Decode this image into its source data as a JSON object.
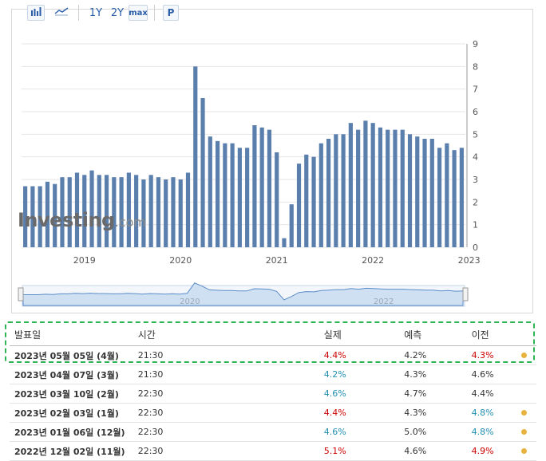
{
  "toolbar": {
    "icons": [
      "bar-chart-icon",
      "line-chart-icon"
    ],
    "range_1y": "1Y",
    "range_2y": "2Y",
    "range_max": "max",
    "p_button": "P"
  },
  "logo": {
    "word": "Investing",
    "domain": ".com"
  },
  "colors": {
    "bar": "#5b7fad",
    "grid": "#e6e6e6",
    "actual_down": "#1f8fb0",
    "actual_up": "#cc0000",
    "dot": "#e8b33d",
    "highlight": "#2eb455"
  },
  "chart_data": {
    "type": "bar",
    "ylim": [
      0,
      9
    ],
    "yticks": [
      "0",
      "1",
      "2",
      "3",
      "4",
      "5",
      "6",
      "7",
      "8",
      "9"
    ],
    "xticks": [
      {
        "label": "2019",
        "index": 8
      },
      {
        "label": "2020",
        "index": 21
      },
      {
        "label": "2021",
        "index": 34
      },
      {
        "label": "2022",
        "index": 47
      },
      {
        "label": "2023",
        "index": 60
      }
    ],
    "values": [
      2.7,
      2.7,
      2.7,
      2.9,
      2.8,
      3.1,
      3.1,
      3.3,
      3.2,
      3.4,
      3.2,
      3.2,
      3.1,
      3.1,
      3.3,
      3.2,
      3.0,
      3.2,
      3.1,
      3.0,
      3.1,
      3.0,
      3.3,
      8.0,
      6.6,
      4.9,
      4.7,
      4.6,
      4.6,
      4.4,
      4.4,
      5.4,
      5.3,
      5.2,
      4.2,
      0.4,
      1.9,
      3.7,
      4.1,
      4.0,
      4.6,
      4.8,
      5.0,
      5.0,
      5.5,
      5.2,
      5.6,
      5.5,
      5.3,
      5.2,
      5.2,
      5.2,
      5.0,
      4.9,
      4.8,
      4.8,
      4.4,
      4.6,
      4.3,
      4.4
    ],
    "navigator_labels": [
      "2020",
      "2022"
    ]
  },
  "table": {
    "headers": {
      "date": "발표일",
      "time": "시간",
      "actual": "실제",
      "forecast": "예측",
      "previous": "이전"
    },
    "rows": [
      {
        "date": "2023년 05월 05일 (4월)",
        "time": "21:30",
        "actual": "4.4%",
        "actual_color": "#cc0000",
        "forecast": "4.2%",
        "previous": "4.3%",
        "previous_color": "#cc0000",
        "dot": true
      },
      {
        "date": "2023년 04월 07일 (3월)",
        "time": "21:30",
        "actual": "4.2%",
        "actual_color": "#1f8fb0",
        "forecast": "4.3%",
        "previous": "4.6%",
        "previous_color": "#333333",
        "dot": false
      },
      {
        "date": "2023년 03월 10일 (2월)",
        "time": "22:30",
        "actual": "4.6%",
        "actual_color": "#1f8fb0",
        "forecast": "4.7%",
        "previous": "4.4%",
        "previous_color": "#333333",
        "dot": false
      },
      {
        "date": "2023년 02월 03일 (1월)",
        "time": "22:30",
        "actual": "4.4%",
        "actual_color": "#cc0000",
        "forecast": "4.3%",
        "previous": "4.8%",
        "previous_color": "#1f8fb0",
        "dot": true
      },
      {
        "date": "2023년 01월 06일 (12월)",
        "time": "22:30",
        "actual": "4.6%",
        "actual_color": "#1f8fb0",
        "forecast": "5.0%",
        "previous": "4.8%",
        "previous_color": "#1f8fb0",
        "dot": true
      },
      {
        "date": "2022년 12월 02일 (11월)",
        "time": "22:30",
        "actual": "5.1%",
        "actual_color": "#cc0000",
        "forecast": "4.6%",
        "previous": "4.9%",
        "previous_color": "#cc0000",
        "dot": true
      }
    ]
  }
}
